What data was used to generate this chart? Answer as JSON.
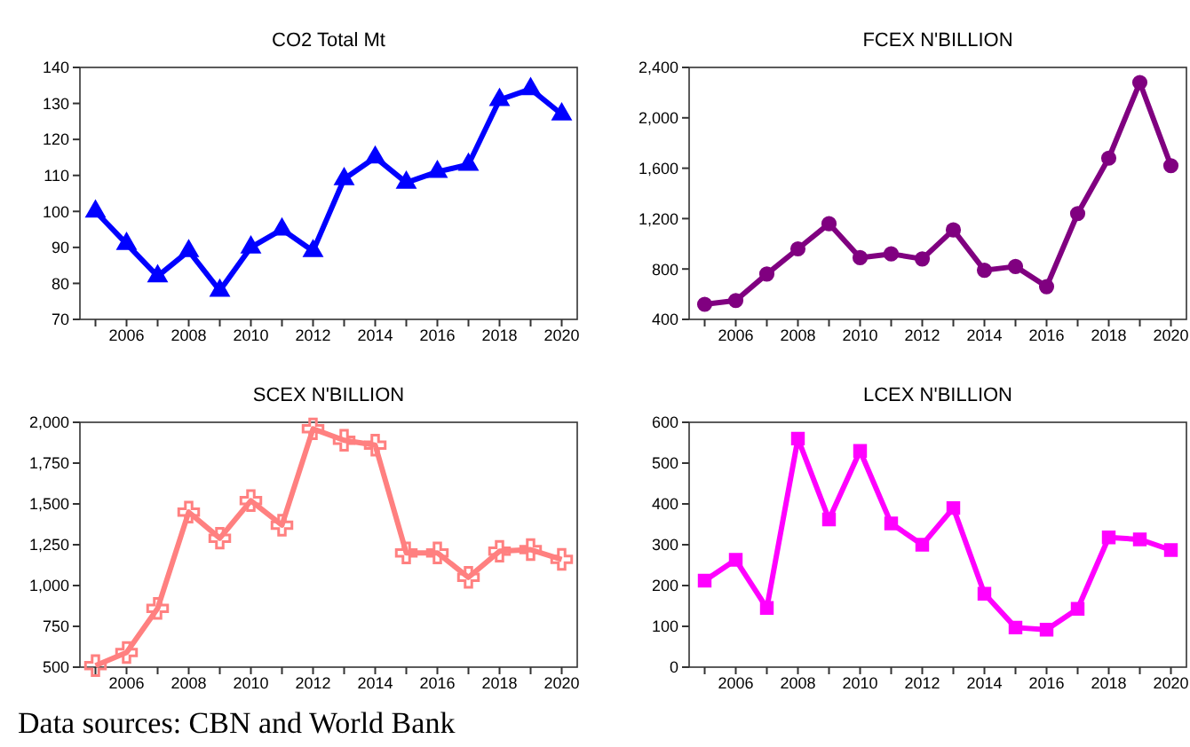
{
  "chart_data": [
    {
      "type": "line",
      "title": "CO2 Total Mt",
      "x": [
        2005,
        2006,
        2007,
        2008,
        2009,
        2010,
        2011,
        2012,
        2013,
        2014,
        2015,
        2016,
        2017,
        2018,
        2019,
        2020
      ],
      "series": [
        {
          "color": "#0000ff",
          "values": [
            100,
            91,
            82,
            89,
            78,
            90,
            95,
            89,
            109,
            115,
            108,
            111,
            113,
            131,
            134,
            127
          ]
        }
      ],
      "marker": "triangle",
      "xlim": [
        2004.5,
        2020.5
      ],
      "xticks": [
        {
          "value": 2005,
          "label": null
        },
        2006,
        {
          "value": 2007,
          "label": null
        },
        2008,
        {
          "value": 2009,
          "label": null
        },
        2010,
        {
          "value": 2011,
          "label": null
        },
        2012,
        {
          "value": 2013,
          "label": null
        },
        2014,
        {
          "value": 2015,
          "label": null
        },
        2016,
        {
          "value": 2017,
          "label": null
        },
        2018,
        {
          "value": 2019,
          "label": null
        },
        2020
      ],
      "ylim": [
        70,
        140
      ],
      "yticks": [
        70,
        80,
        90,
        100,
        110,
        120,
        130,
        140
      ],
      "grid": false
    },
    {
      "type": "line",
      "title": "FCEX N'BILLION",
      "x": [
        2005,
        2006,
        2007,
        2008,
        2009,
        2010,
        2011,
        2012,
        2013,
        2014,
        2015,
        2016,
        2017,
        2018,
        2019,
        2020
      ],
      "series": [
        {
          "color": "#800080",
          "values": [
            520,
            550,
            760,
            960,
            1160,
            890,
            920,
            880,
            1110,
            790,
            820,
            660,
            1240,
            1680,
            2280,
            1620
          ]
        }
      ],
      "marker": "circle",
      "xlim": [
        2004.5,
        2020.5
      ],
      "xticks": [
        {
          "value": 2005,
          "label": null
        },
        2006,
        {
          "value": 2007,
          "label": null
        },
        2008,
        {
          "value": 2009,
          "label": null
        },
        2010,
        {
          "value": 2011,
          "label": null
        },
        2012,
        {
          "value": 2013,
          "label": null
        },
        2014,
        {
          "value": 2015,
          "label": null
        },
        2016,
        {
          "value": 2017,
          "label": null
        },
        2018,
        {
          "value": 2019,
          "label": null
        },
        2020
      ],
      "ylim": [
        400,
        2400
      ],
      "yticks": [
        400,
        800,
        {
          "value": 1200,
          "label": "1,200"
        },
        {
          "value": 1600,
          "label": "1,600"
        },
        {
          "value": 2000,
          "label": "2,000"
        },
        {
          "value": 2400,
          "label": "2,400"
        }
      ],
      "grid": false
    },
    {
      "type": "line",
      "title": "SCEX N'BILLION",
      "x": [
        2005,
        2006,
        2007,
        2008,
        2009,
        2010,
        2011,
        2012,
        2013,
        2014,
        2015,
        2016,
        2017,
        2018,
        2019,
        2020
      ],
      "series": [
        {
          "color": "#ff8080",
          "values": [
            510,
            590,
            860,
            1450,
            1290,
            1520,
            1370,
            1960,
            1890,
            1860,
            1200,
            1200,
            1050,
            1210,
            1220,
            1160
          ]
        }
      ],
      "marker": "cross",
      "xlim": [
        2004.5,
        2020.5
      ],
      "xticks": [
        {
          "value": 2005,
          "label": null
        },
        2006,
        {
          "value": 2007,
          "label": null
        },
        2008,
        {
          "value": 2009,
          "label": null
        },
        2010,
        {
          "value": 2011,
          "label": null
        },
        2012,
        {
          "value": 2013,
          "label": null
        },
        2014,
        {
          "value": 2015,
          "label": null
        },
        2016,
        {
          "value": 2017,
          "label": null
        },
        2018,
        {
          "value": 2019,
          "label": null
        },
        2020
      ],
      "ylim": [
        500,
        2000
      ],
      "yticks": [
        500,
        750,
        {
          "value": 1000,
          "label": "1,000"
        },
        {
          "value": 1250,
          "label": "1,250"
        },
        {
          "value": 1500,
          "label": "1,500"
        },
        {
          "value": 1750,
          "label": "1,750"
        },
        {
          "value": 2000,
          "label": "2,000"
        }
      ],
      "grid": false,
      "annotations": [
        "Data sources: CBN and World Bank"
      ]
    },
    {
      "type": "line",
      "title": "LCEX N'BILLION",
      "x": [
        2005,
        2006,
        2007,
        2008,
        2009,
        2010,
        2011,
        2012,
        2013,
        2014,
        2015,
        2016,
        2017,
        2018,
        2019,
        2020
      ],
      "series": [
        {
          "color": "#ff00ff",
          "values": [
            212,
            263,
            145,
            560,
            362,
            530,
            352,
            300,
            390,
            180,
            97,
            92,
            143,
            318,
            313,
            287
          ]
        }
      ],
      "marker": "square",
      "xlim": [
        2004.5,
        2020.5
      ],
      "xticks": [
        {
          "value": 2005,
          "label": null
        },
        2006,
        {
          "value": 2007,
          "label": null
        },
        2008,
        {
          "value": 2009,
          "label": null
        },
        2010,
        {
          "value": 2011,
          "label": null
        },
        2012,
        {
          "value": 2013,
          "label": null
        },
        2014,
        {
          "value": 2015,
          "label": null
        },
        2016,
        {
          "value": 2017,
          "label": null
        },
        2018,
        {
          "value": 2019,
          "label": null
        },
        2020
      ],
      "ylim": [
        0,
        600
      ],
      "yticks": [
        0,
        100,
        200,
        300,
        400,
        500,
        600
      ],
      "grid": false
    }
  ]
}
